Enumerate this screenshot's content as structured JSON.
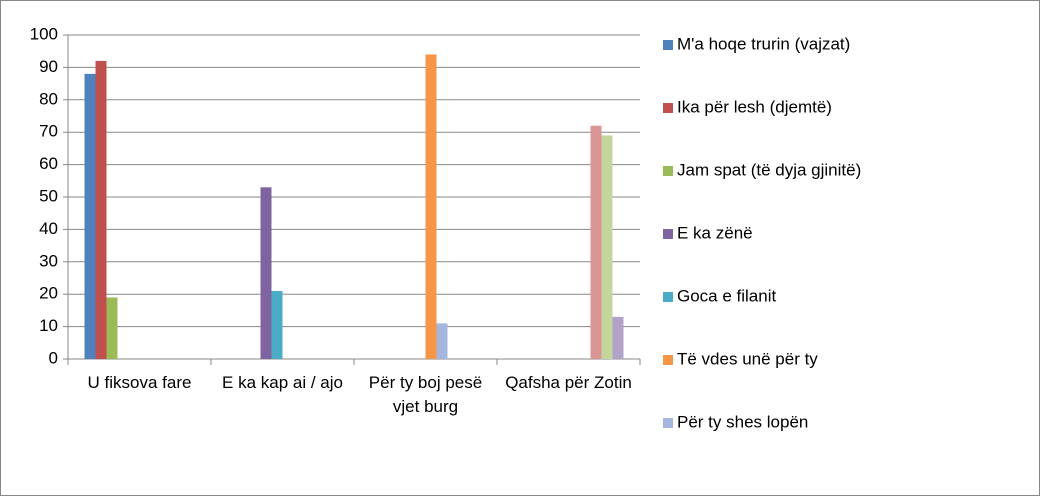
{
  "chart_data": {
    "type": "bar",
    "categories": [
      "U fiksova fare",
      "E ka kap ai / ajo",
      "Për ty boj pesë vjet burg",
      "Qafsha për Zotin"
    ],
    "series": [
      {
        "name": "M'a hoqe trurin (vajzat)",
        "color": "#4f81bd",
        "values": [
          88,
          null,
          null,
          null
        ]
      },
      {
        "name": "Ika për lesh (djemtë)",
        "color": "#c0504d",
        "values": [
          92,
          null,
          null,
          null
        ]
      },
      {
        "name": "Jam spat (të dyja gjinitë)",
        "color": "#9bbb59",
        "values": [
          19,
          null,
          null,
          null
        ]
      },
      {
        "name": "E ka zënë",
        "color": "#8064a2",
        "values": [
          null,
          53,
          null,
          null
        ]
      },
      {
        "name": "Goca e filanit",
        "color": "#4bacc6",
        "values": [
          null,
          21,
          null,
          null
        ]
      },
      {
        "name": "Të vdes unë për ty",
        "color": "#f79646",
        "values": [
          null,
          null,
          94,
          null
        ]
      },
      {
        "name": "Për ty shes lopën",
        "color": "#a4b5de",
        "values": [
          null,
          null,
          11,
          null
        ]
      },
      {
        "name": null,
        "color": "#d99694",
        "values": [
          null,
          null,
          null,
          72
        ]
      },
      {
        "name": null,
        "color": "#c3d69b",
        "values": [
          null,
          null,
          null,
          69
        ]
      },
      {
        "name": null,
        "color": "#b3a2c7",
        "values": [
          null,
          null,
          null,
          13
        ]
      }
    ],
    "ylim": [
      0,
      100
    ],
    "yticks": [
      0,
      10,
      20,
      30,
      40,
      50,
      60,
      70,
      80,
      90,
      100
    ],
    "grid": true
  }
}
